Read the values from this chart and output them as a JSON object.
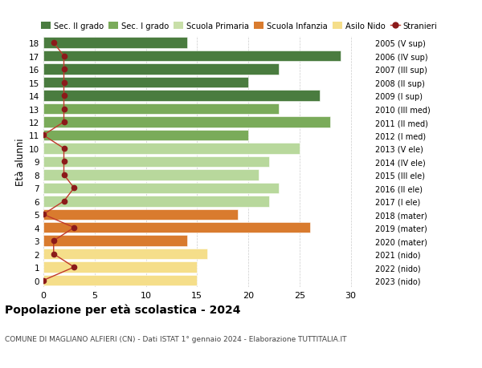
{
  "ages": [
    18,
    17,
    16,
    15,
    14,
    13,
    12,
    11,
    10,
    9,
    8,
    7,
    6,
    5,
    4,
    3,
    2,
    1,
    0
  ],
  "years": [
    "2005 (V sup)",
    "2006 (IV sup)",
    "2007 (III sup)",
    "2008 (II sup)",
    "2009 (I sup)",
    "2010 (III med)",
    "2011 (II med)",
    "2012 (I med)",
    "2013 (V ele)",
    "2014 (IV ele)",
    "2015 (III ele)",
    "2016 (II ele)",
    "2017 (I ele)",
    "2018 (mater)",
    "2019 (mater)",
    "2020 (mater)",
    "2021 (nido)",
    "2022 (nido)",
    "2023 (nido)"
  ],
  "bar_values": [
    14,
    29,
    23,
    20,
    27,
    23,
    28,
    20,
    25,
    22,
    21,
    23,
    22,
    19,
    26,
    14,
    16,
    15,
    15
  ],
  "bar_colors": [
    "#4a7c3f",
    "#4a7c3f",
    "#4a7c3f",
    "#4a7c3f",
    "#4a7c3f",
    "#7aab5a",
    "#7aab5a",
    "#7aab5a",
    "#b8d89c",
    "#b8d89c",
    "#b8d89c",
    "#b8d89c",
    "#b8d89c",
    "#d97b2e",
    "#d97b2e",
    "#d97b2e",
    "#f5de8a",
    "#f5de8a",
    "#f5de8a"
  ],
  "stranieri_values": [
    1,
    2,
    2,
    2,
    2,
    2,
    2,
    0,
    2,
    2,
    2,
    3,
    2,
    0,
    3,
    1,
    1,
    3,
    0
  ],
  "legend_labels": [
    "Sec. II grado",
    "Sec. I grado",
    "Scuola Primaria",
    "Scuola Infanzia",
    "Asilo Nido",
    "Stranieri"
  ],
  "legend_colors": [
    "#4a7c3f",
    "#7aab5a",
    "#c8dfa8",
    "#d97b2e",
    "#f5de8a",
    "#8b1a1a"
  ],
  "title": "Popolazione per età scolastica - 2024",
  "subtitle": "COMUNE DI MAGLIANO ALFIERI (CN) - Dati ISTAT 1° gennaio 2024 - Elaborazione TUTTITALIA.IT",
  "ylabel_left": "Età alunni",
  "xlim": [
    0,
    32
  ],
  "bg_color": "#ffffff",
  "grid_color": "#cccccc",
  "stranieri_dot_color": "#8b1a1a",
  "stranieri_line_color": "#c0392b",
  "bar_height": 0.82
}
